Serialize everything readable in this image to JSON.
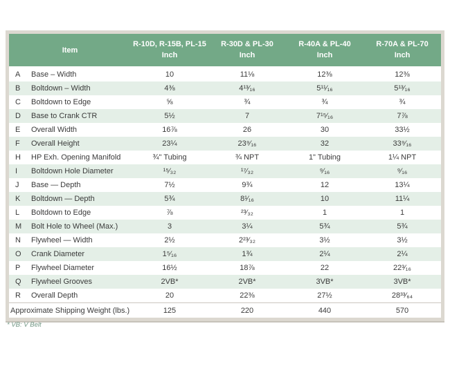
{
  "colors": {
    "header_bg": "#73a987",
    "row_stripe": "#e4efe7",
    "outer_border": "#dcd8d0",
    "footnote_text": "#6f9582",
    "body_text": "#3a3a3a"
  },
  "table": {
    "item_header": "Item",
    "columns": [
      {
        "model": "R-10D, R-15B, PL-15",
        "unit": "Inch"
      },
      {
        "model": "R-30D & PL-30",
        "unit": "Inch"
      },
      {
        "model": "R-40A & PL-40",
        "unit": "Inch"
      },
      {
        "model": "R-70A & PL-70",
        "unit": "Inch"
      }
    ],
    "rows": [
      {
        "letter": "A",
        "item": "Base – Width",
        "values": [
          "10",
          "11⅛",
          "12⅜",
          "12⅜"
        ]
      },
      {
        "letter": "B",
        "item": "Boltdown – Width",
        "values": [
          "4⅜",
          "4¹³⁄₁₆",
          "5¹¹⁄₁₆",
          "5¹³⁄₁₆"
        ]
      },
      {
        "letter": "C",
        "item": "Boltdown to Edge",
        "values": [
          "⅝",
          "¾",
          "¾",
          "¾"
        ]
      },
      {
        "letter": "D",
        "item": "Base to Crank CTR",
        "values": [
          "5½",
          "7",
          "7¹⁵⁄₁₆",
          "7⅞"
        ]
      },
      {
        "letter": "E",
        "item": "Overall Width",
        "values": [
          "16⅞",
          "26",
          "30",
          "33½"
        ]
      },
      {
        "letter": "F",
        "item": "Overall Height",
        "values": [
          "23¼",
          "23⁹⁄₁₆",
          "32",
          "33⁹⁄₁₆"
        ]
      },
      {
        "letter": "H",
        "item": "HP Exh. Opening Manifold",
        "values": [
          "¾\" Tubing",
          "¾ NPT",
          "1\" Tubing",
          "1¼ NPT"
        ]
      },
      {
        "letter": "I",
        "item": "Boltdown Hole Diameter",
        "values": [
          "¹⁵⁄₃₂",
          "¹⁷⁄₃₂",
          "⁹⁄₁₆",
          "⁹⁄₁₆"
        ]
      },
      {
        "letter": "J",
        "item": "Base — Depth",
        "values": [
          "7½",
          "9¾",
          "12",
          "13¼"
        ]
      },
      {
        "letter": "K",
        "item": "Boltdown — Depth",
        "values": [
          "5¾",
          "8¹⁄₁₆",
          "10",
          "11¼"
        ]
      },
      {
        "letter": "L",
        "item": "Boltdown to Edge",
        "values": [
          "⅞",
          "²³⁄₃₂",
          "1",
          "1"
        ]
      },
      {
        "letter": "M",
        "item": "Bolt Hole to Wheel (Max.)",
        "values": [
          "3",
          "3¼",
          "5¾",
          "5¾"
        ]
      },
      {
        "letter": "N",
        "item": "Flywheel — Width",
        "values": [
          "2½",
          "2²³⁄₃₂",
          "3½",
          "3½"
        ]
      },
      {
        "letter": "O",
        "item": "Crank Diameter",
        "values": [
          "1⁵⁄₁₆",
          "1¾",
          "2¼",
          "2¼"
        ]
      },
      {
        "letter": "P",
        "item": "Flywheel Diameter",
        "values": [
          "16½",
          "18⅞",
          "22",
          "22³⁄₁₆"
        ]
      },
      {
        "letter": "Q",
        "item": "Flywheel Grooves",
        "values": [
          "2VB*",
          "2VB*",
          "3VB*",
          "3VB*"
        ]
      },
      {
        "letter": "R",
        "item": "Overall Depth",
        "values": [
          "20",
          "22⅜",
          "27½",
          "28³³⁄₆₄"
        ]
      }
    ],
    "footer_row": {
      "label": "Approximate Shipping Weight (lbs.)",
      "values": [
        "125",
        "220",
        "440",
        "570"
      ]
    }
  },
  "footnote": "* VB: V Belt"
}
